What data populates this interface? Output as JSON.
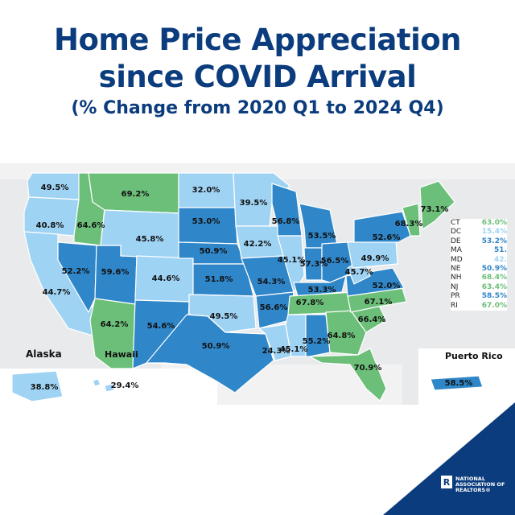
{
  "header": {
    "title_line1": "Home Price Appreciation",
    "title_line2": "since COVID Arrival",
    "subtitle": "(% Change from 2020 Q1 to 2024 Q4)"
  },
  "colors": {
    "high": "#6cbf79",
    "mid": "#2f86c9",
    "low": "#9fd3f4",
    "title": "#0b3c7d"
  },
  "map": {
    "states": [
      {
        "name": "WA",
        "value": "49.5%",
        "tier": "low"
      },
      {
        "name": "OR",
        "value": "40.8%",
        "tier": "low"
      },
      {
        "name": "CA",
        "value": "44.7%",
        "tier": "low"
      },
      {
        "name": "ID",
        "value": "64.6%",
        "tier": "high"
      },
      {
        "name": "NV",
        "value": "52.2%",
        "tier": "mid"
      },
      {
        "name": "UT",
        "value": "59.6%",
        "tier": "mid"
      },
      {
        "name": "AZ",
        "value": "64.2%",
        "tier": "high"
      },
      {
        "name": "MT",
        "value": "69.2%",
        "tier": "high"
      },
      {
        "name": "WY",
        "value": "45.8%",
        "tier": "low"
      },
      {
        "name": "CO",
        "value": "44.6%",
        "tier": "low"
      },
      {
        "name": "NM",
        "value": "54.6%",
        "tier": "mid"
      },
      {
        "name": "ND",
        "value": "32.0%",
        "tier": "low"
      },
      {
        "name": "SD",
        "value": "53.0%",
        "tier": "mid"
      },
      {
        "name": "NE",
        "value": "50.9%",
        "tier": "mid"
      },
      {
        "name": "KS",
        "value": "51.8%",
        "tier": "mid"
      },
      {
        "name": "OK",
        "value": "49.5%",
        "tier": "low"
      },
      {
        "name": "TX",
        "value": "50.9%",
        "tier": "mid"
      },
      {
        "name": "MN",
        "value": "39.5%",
        "tier": "low"
      },
      {
        "name": "IA",
        "value": "42.2%",
        "tier": "low"
      },
      {
        "name": "MO",
        "value": "54.3%",
        "tier": "mid"
      },
      {
        "name": "AR",
        "value": "56.6%",
        "tier": "mid"
      },
      {
        "name": "LA",
        "value": "24.3%",
        "tier": "low"
      },
      {
        "name": "WI",
        "value": "56.8%",
        "tier": "mid"
      },
      {
        "name": "IL",
        "value": "45.1%",
        "tier": "low"
      },
      {
        "name": "MI",
        "value": "53.5%",
        "tier": "mid"
      },
      {
        "name": "IN",
        "value": "57.3%",
        "tier": "mid"
      },
      {
        "name": "OH",
        "value": "56.5%",
        "tier": "mid"
      },
      {
        "name": "KY",
        "value": "53.3%",
        "tier": "mid"
      },
      {
        "name": "TN",
        "value": "67.8%",
        "tier": "high"
      },
      {
        "name": "MS",
        "value": "45.1%",
        "tier": "low"
      },
      {
        "name": "AL",
        "value": "55.2%",
        "tier": "mid"
      },
      {
        "name": "GA",
        "value": "64.8%",
        "tier": "high"
      },
      {
        "name": "FL",
        "value": "70.9%",
        "tier": "high"
      },
      {
        "name": "SC",
        "value": "66.4%",
        "tier": "high"
      },
      {
        "name": "NC",
        "value": "67.1%",
        "tier": "high"
      },
      {
        "name": "VA",
        "value": "52.0%",
        "tier": "mid"
      },
      {
        "name": "WV",
        "value": "45.7%",
        "tier": "low"
      },
      {
        "name": "PA",
        "value": "49.9%",
        "tier": "low"
      },
      {
        "name": "NY",
        "value": "52.6%",
        "tier": "mid"
      },
      {
        "name": "VT",
        "value": "68.3%",
        "tier": "high"
      },
      {
        "name": "ME",
        "value": "73.1%",
        "tier": "high"
      },
      {
        "name": "AK",
        "value": "38.8%",
        "tier": "low"
      },
      {
        "name": "HI",
        "value": "29.4%",
        "tier": "low"
      },
      {
        "name": "PR",
        "value": "58.5%",
        "tier": "mid"
      }
    ],
    "inset_labels": {
      "alaska": "Alaska",
      "hawaii": "Hawaii",
      "puerto_rico": "Puerto Rico"
    },
    "legend": [
      {
        "abbr": "CT",
        "value": "63.0%",
        "tier": "high"
      },
      {
        "abbr": "DC",
        "value": "15.4%",
        "tier": "low"
      },
      {
        "abbr": "DE",
        "value": "53.2%",
        "tier": "mid"
      },
      {
        "abbr": "MA",
        "value": "51.",
        "tier": "mid"
      },
      {
        "abbr": "MD",
        "value": "42.",
        "tier": "low"
      },
      {
        "abbr": "NE",
        "value": "50.9%",
        "tier": "mid"
      },
      {
        "abbr": "NH",
        "value": "68.4%",
        "tier": "high"
      },
      {
        "abbr": "NJ",
        "value": "63.4%",
        "tier": "high"
      },
      {
        "abbr": "PR",
        "value": "58.5%",
        "tier": "mid"
      },
      {
        "abbr": "RI",
        "value": "67.0%",
        "tier": "high"
      }
    ]
  },
  "logo": {
    "line1": "NATIONAL",
    "line2": "ASSOCIATION OF",
    "line3": "REALTORS®"
  }
}
